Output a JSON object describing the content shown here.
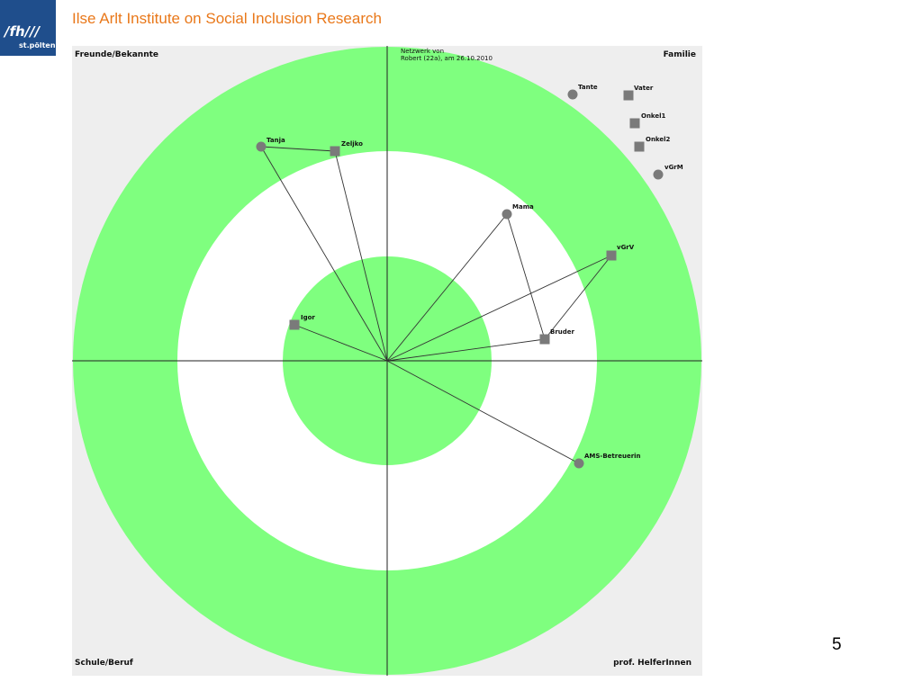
{
  "header": {
    "logo_line1": "/fh///",
    "logo_line2": "st.pölten",
    "title": "Ilse Arlt Institute on Social Inclusion Research"
  },
  "slide_number": "5",
  "diagram": {
    "caption_line1": "Netzwerk von",
    "caption_line2": "Robert (22a), am 26.10.2010",
    "quadrants": {
      "top_left": "Freunde/Bekannte",
      "top_right": "Familie",
      "bottom_left": "Schule/Beruf",
      "bottom_right": "prof. HelferInnen"
    },
    "colors": {
      "ring": "#7fff7f",
      "background": "#eeeeee",
      "node": "#7a7a7a"
    },
    "nodes": [
      {
        "id": "tanja",
        "label": "Tanja",
        "shape": "circle"
      },
      {
        "id": "zeljko",
        "label": "Zeljko",
        "shape": "square"
      },
      {
        "id": "igor",
        "label": "Igor",
        "shape": "square"
      },
      {
        "id": "mama",
        "label": "Mama",
        "shape": "circle"
      },
      {
        "id": "vgrv",
        "label": "vGrV",
        "shape": "square"
      },
      {
        "id": "bruder",
        "label": "Bruder",
        "shape": "square"
      },
      {
        "id": "ams",
        "label": "AMS-Betreuerin",
        "shape": "circle"
      },
      {
        "id": "tante",
        "label": "Tante",
        "shape": "circle"
      },
      {
        "id": "vater",
        "label": "Vater",
        "shape": "square"
      },
      {
        "id": "onkel1",
        "label": "Onkel1",
        "shape": "square"
      },
      {
        "id": "onkel2",
        "label": "Onkel2",
        "shape": "square"
      },
      {
        "id": "vgrm",
        "label": "vGrM",
        "shape": "circle"
      }
    ]
  }
}
